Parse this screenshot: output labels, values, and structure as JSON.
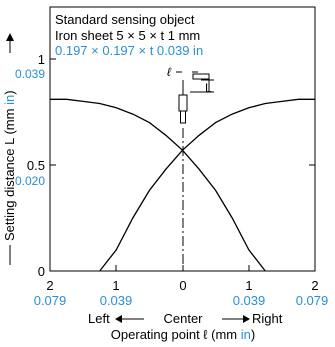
{
  "chart_data": {
    "type": "line",
    "info": {
      "line1": "Standard sensing object",
      "line2": "Iron sheet 5 × 5 × t 1 mm",
      "line3": "0.197 × 0.197 × t 0.039 in"
    },
    "ylabel": {
      "text": "Setting distance L (mm ",
      "unit": "in",
      "close": ")"
    },
    "xlabel": {
      "text": "Operating point ℓ (mm ",
      "unit": "in",
      "close": ")"
    },
    "direction": {
      "left": "Left",
      "center": "Center",
      "right": "Right"
    },
    "xlim": [
      -2,
      2
    ],
    "ylim": [
      0,
      1.1
    ],
    "x_ticks_mm": [
      {
        "v": -2,
        "mm": "2",
        "in": "0.079"
      },
      {
        "v": -1,
        "mm": "1",
        "in": "0.039"
      },
      {
        "v": 0,
        "mm": "0",
        "in": ""
      },
      {
        "v": 1,
        "mm": "1",
        "in": "0.039"
      },
      {
        "v": 2,
        "mm": "2",
        "in": "0.079"
      }
    ],
    "y_ticks": [
      {
        "v": 0,
        "mm": "0",
        "in": ""
      },
      {
        "v": 0.5,
        "mm": "0.5",
        "in": "0.020"
      },
      {
        "v": 1,
        "mm": "1",
        "in": "0.039"
      }
    ],
    "diagram_labels": {
      "ell": "ℓ",
      "L": "L"
    },
    "series": [
      {
        "x": [
          -2,
          -1.75,
          -1.5,
          -1.25,
          -1.0,
          -0.75,
          -0.5,
          -0.25,
          0,
          0.25,
          0.5,
          0.75,
          1.0,
          1.25,
          1.5,
          1.75,
          2
        ],
        "y": [
          0.81,
          0.81,
          0.8,
          0.79,
          0.77,
          0.74,
          0.7,
          0.64,
          0.57,
          0.48,
          0.38,
          0.25,
          0.1,
          0,
          null,
          null,
          null
        ]
      },
      {
        "x": [
          -2,
          -1.75,
          -1.5,
          -1.25,
          -1.0,
          -0.75,
          -0.5,
          -0.25,
          0,
          0.25,
          0.5,
          0.75,
          1.0,
          1.25,
          1.5,
          1.75,
          2
        ],
        "y": [
          null,
          null,
          null,
          0,
          0.1,
          0.25,
          0.38,
          0.48,
          0.57,
          0.64,
          0.7,
          0.74,
          0.77,
          0.79,
          0.8,
          0.81,
          0.81
        ]
      }
    ],
    "colors": {
      "line": "#000000",
      "inch": "#2a8fd6"
    }
  }
}
